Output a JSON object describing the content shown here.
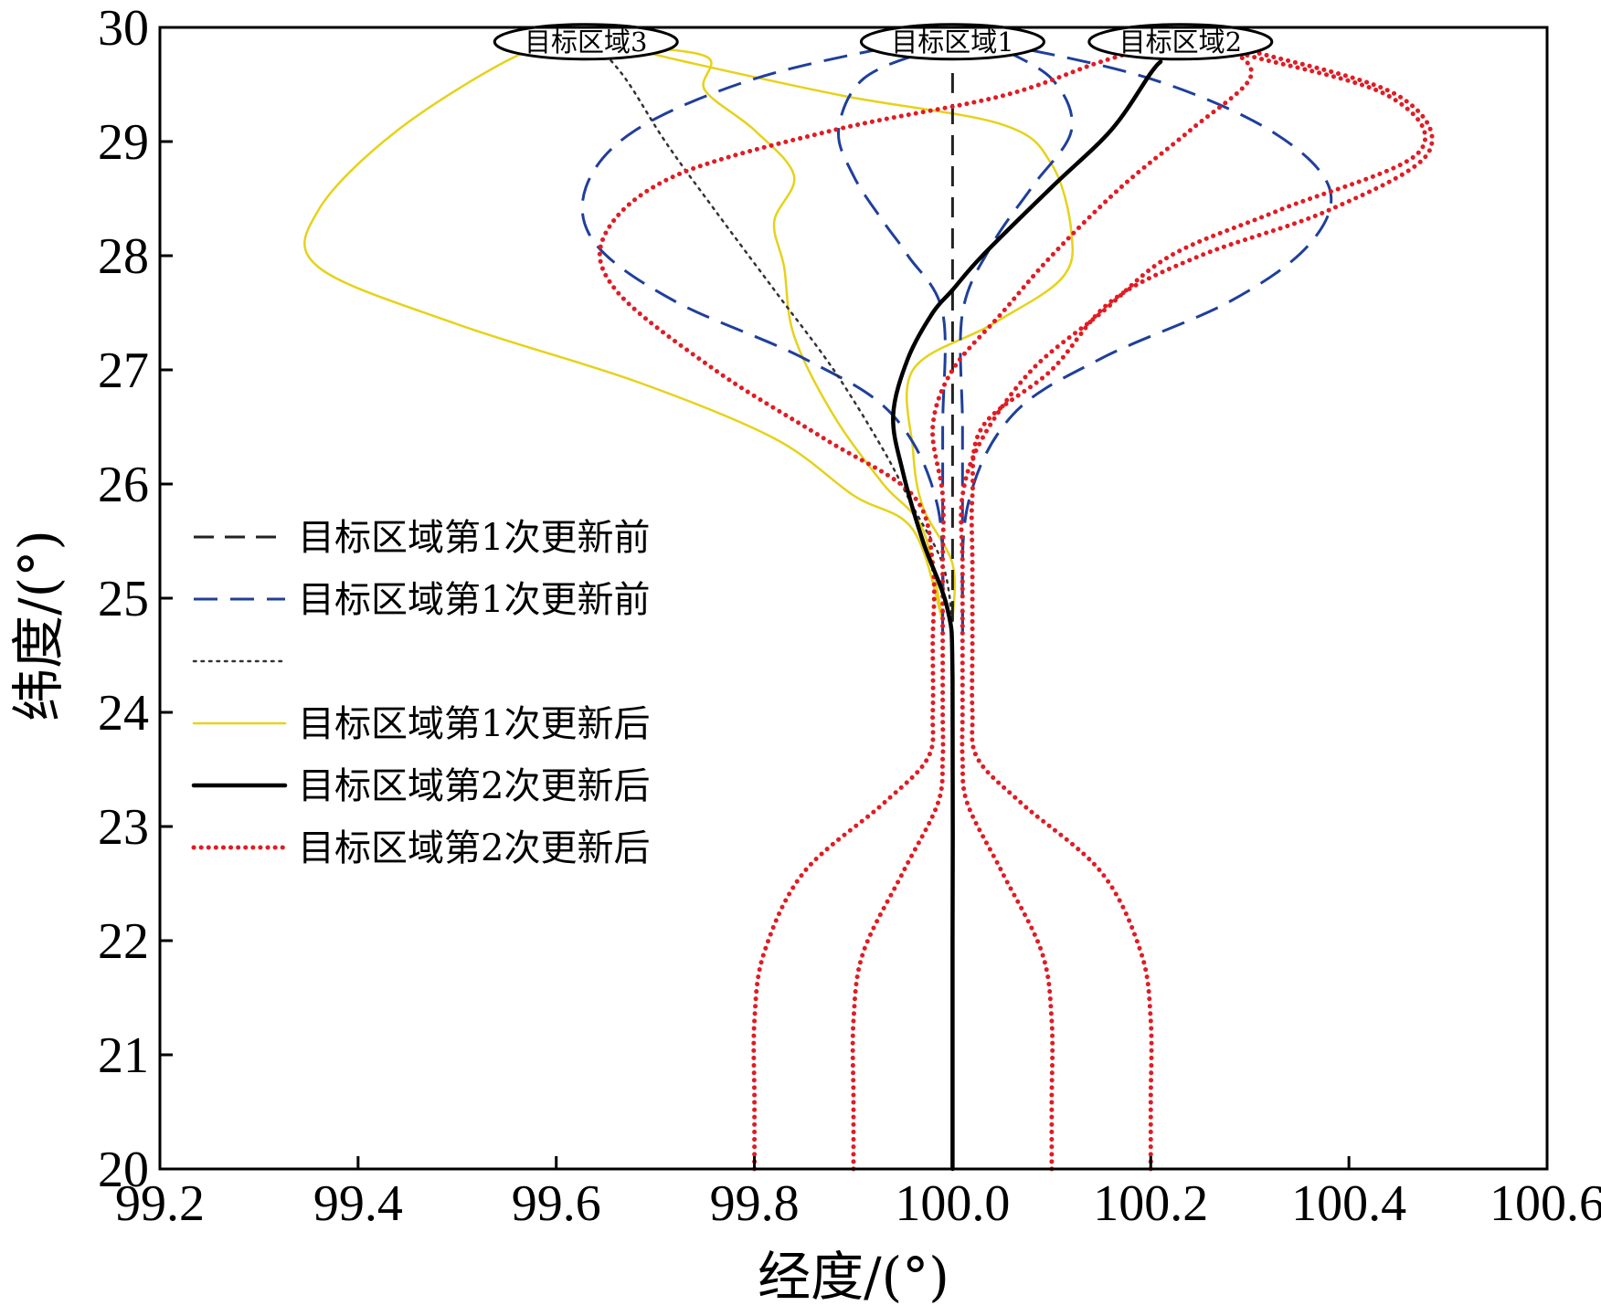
{
  "chart_data": {
    "type": "line",
    "xlabel": "经度/(°)",
    "ylabel": "纬度/(°)",
    "xlim": [
      99.2,
      100.6
    ],
    "ylim": [
      20,
      30
    ],
    "xticks": [
      "99.2",
      "99.4",
      "99.6",
      "99.8",
      "100.0",
      "100.2",
      "100.4",
      "100.6"
    ],
    "yticks": [
      "20",
      "21",
      "22",
      "23",
      "24",
      "25",
      "26",
      "27",
      "28",
      "29",
      "30"
    ],
    "grid": false,
    "legend_position": "left",
    "legend": [
      {
        "label": "目标区域第1次更新前",
        "color": "#222222",
        "style": "dash-long"
      },
      {
        "label": "目标区域第1次更新前",
        "color": "#1f3f9a",
        "style": "dash-long"
      },
      {
        "label": "",
        "color": "#333333",
        "style": "dot-fine"
      },
      {
        "label": "目标区域第1次更新后",
        "color": "#e6d21a",
        "style": "solid-thin"
      },
      {
        "label": "目标区域第2次更新后",
        "color": "#000000",
        "style": "solid-thick"
      },
      {
        "label": "目标区域第2次更新后",
        "color": "#e01c24",
        "style": "dot-red"
      }
    ],
    "target_regions": [
      {
        "label": "目标区域3",
        "x": 99.63,
        "y": 29.85
      },
      {
        "label": "目标区域1",
        "x": 100.0,
        "y": 29.85
      },
      {
        "label": "目标区域2",
        "x": 100.23,
        "y": 29.85
      }
    ],
    "series": [
      {
        "style": 0,
        "points": [
          [
            100.0,
            24.8
          ],
          [
            100.0,
            26
          ],
          [
            100.0,
            27
          ],
          [
            100.0,
            28
          ],
          [
            100.0,
            29
          ],
          [
            100.0,
            29.65
          ]
        ]
      },
      {
        "style": 1,
        "points": [
          [
            99.99,
            24.7
          ],
          [
            99.99,
            25.5
          ],
          [
            99.99,
            26.5
          ],
          [
            99.99,
            27.5
          ],
          [
            99.955,
            28
          ],
          [
            99.93,
            28.3
          ],
          [
            99.9,
            28.7
          ],
          [
            99.885,
            29.1
          ],
          [
            99.91,
            29.55
          ],
          [
            99.98,
            29.8
          ],
          [
            100.03,
            29.85
          ]
        ]
      },
      {
        "style": 1,
        "points": [
          [
            100.01,
            24.7
          ],
          [
            100.01,
            25.5
          ],
          [
            100.01,
            26.5
          ],
          [
            100.01,
            27.5
          ],
          [
            100.04,
            28.1
          ],
          [
            100.08,
            28.6
          ],
          [
            100.12,
            29.1
          ],
          [
            100.1,
            29.55
          ],
          [
            100.04,
            29.85
          ]
        ]
      },
      {
        "style": 1,
        "points": [
          [
            99.99,
            24.7
          ],
          [
            99.985,
            25.8
          ],
          [
            99.94,
            26.6
          ],
          [
            99.85,
            27.1
          ],
          [
            99.72,
            27.6
          ],
          [
            99.64,
            28.1
          ],
          [
            99.63,
            28.6
          ],
          [
            99.68,
            29.1
          ],
          [
            99.8,
            29.55
          ],
          [
            99.95,
            29.85
          ],
          [
            100.0,
            29.9
          ]
        ]
      },
      {
        "style": 1,
        "points": [
          [
            100.01,
            24.7
          ],
          [
            100.015,
            25.8
          ],
          [
            100.06,
            26.6
          ],
          [
            100.15,
            27.1
          ],
          [
            100.28,
            27.6
          ],
          [
            100.36,
            28.1
          ],
          [
            100.38,
            28.6
          ],
          [
            100.32,
            29.1
          ],
          [
            100.2,
            29.55
          ],
          [
            100.05,
            29.85
          ],
          [
            100.0,
            29.9
          ]
        ]
      },
      {
        "style": 2,
        "points": [
          [
            100.0,
            24.8
          ],
          [
            99.99,
            25.3
          ],
          [
            99.96,
            25.8
          ],
          [
            99.93,
            26.3
          ],
          [
            99.88,
            27.0
          ],
          [
            99.82,
            27.7
          ],
          [
            99.76,
            28.4
          ],
          [
            99.71,
            29.0
          ],
          [
            99.67,
            29.55
          ],
          [
            99.64,
            29.85
          ]
        ]
      },
      {
        "style": 3,
        "points": [
          [
            99.99,
            24.8
          ],
          [
            99.96,
            25.6
          ],
          [
            99.9,
            25.9
          ],
          [
            99.82,
            26.4
          ],
          [
            99.68,
            26.9
          ],
          [
            99.5,
            27.4
          ],
          [
            99.36,
            27.9
          ],
          [
            99.36,
            28.4
          ],
          [
            99.44,
            29.1
          ],
          [
            99.56,
            29.75
          ],
          [
            99.62,
            29.85
          ]
        ]
      },
      {
        "style": 3,
        "points": [
          [
            99.99,
            24.8
          ],
          [
            99.97,
            25.6
          ],
          [
            99.93,
            26.0
          ],
          [
            99.88,
            26.6
          ],
          [
            99.84,
            27.3
          ],
          [
            99.83,
            27.9
          ],
          [
            99.82,
            28.3
          ],
          [
            99.84,
            28.7
          ],
          [
            99.8,
            29.1
          ],
          [
            99.75,
            29.45
          ],
          [
            99.75,
            29.75
          ],
          [
            99.64,
            29.85
          ]
        ]
      },
      {
        "style": 3,
        "points": [
          [
            100.0,
            24.8
          ],
          [
            100.0,
            25.3
          ],
          [
            99.97,
            25.8
          ],
          [
            99.96,
            26.3
          ],
          [
            99.96,
            27.0
          ],
          [
            100.04,
            27.4
          ],
          [
            100.11,
            27.8
          ],
          [
            100.12,
            28.2
          ],
          [
            100.1,
            28.8
          ],
          [
            100.05,
            29.15
          ],
          [
            99.89,
            29.4
          ],
          [
            99.73,
            29.7
          ],
          [
            99.66,
            29.85
          ]
        ]
      },
      {
        "style": 4,
        "points": [
          [
            100.0,
            20.0
          ],
          [
            100.0,
            22
          ],
          [
            100.0,
            24.3
          ],
          [
            99.995,
            24.9
          ],
          [
            99.97,
            25.5
          ],
          [
            99.95,
            26.1
          ],
          [
            99.94,
            26.6
          ],
          [
            99.955,
            27.1
          ],
          [
            99.98,
            27.5
          ],
          [
            100.0,
            27.7
          ],
          [
            100.03,
            28.0
          ],
          [
            100.1,
            28.6
          ],
          [
            100.16,
            29.1
          ],
          [
            100.2,
            29.6
          ],
          [
            100.21,
            29.7
          ]
        ]
      },
      {
        "style": 5,
        "points": [
          [
            99.8,
            20.0
          ],
          [
            99.8,
            20.6
          ],
          [
            99.8,
            21.3
          ],
          [
            99.81,
            21.9
          ],
          [
            99.85,
            22.6
          ],
          [
            99.93,
            23.2
          ],
          [
            99.975,
            23.6
          ],
          [
            99.98,
            24.0
          ],
          [
            99.98,
            24.6
          ],
          [
            99.98,
            25.3
          ],
          [
            99.96,
            25.9
          ],
          [
            99.87,
            26.4
          ],
          [
            99.76,
            27.0
          ],
          [
            99.66,
            27.7
          ],
          [
            99.65,
            28.2
          ],
          [
            99.72,
            28.7
          ],
          [
            99.88,
            29.1
          ],
          [
            100.05,
            29.4
          ],
          [
            100.15,
            29.7
          ],
          [
            100.23,
            29.9
          ]
        ]
      },
      {
        "style": 5,
        "points": [
          [
            99.9,
            20.0
          ],
          [
            99.9,
            20.6
          ],
          [
            99.9,
            21.3
          ],
          [
            99.91,
            21.9
          ],
          [
            99.95,
            22.6
          ],
          [
            99.985,
            23.2
          ],
          [
            99.99,
            23.6
          ],
          [
            99.99,
            24.0
          ],
          [
            99.99,
            24.6
          ],
          [
            99.99,
            25.3
          ],
          [
            99.99,
            25.9
          ],
          [
            99.98,
            26.5
          ],
          [
            100.0,
            27.0
          ],
          [
            100.05,
            27.5
          ],
          [
            100.1,
            28.0
          ],
          [
            100.17,
            28.6
          ],
          [
            100.24,
            29.1
          ],
          [
            100.3,
            29.55
          ],
          [
            100.28,
            29.8
          ],
          [
            100.23,
            29.9
          ]
        ]
      },
      {
        "style": 5,
        "points": [
          [
            100.1,
            20.0
          ],
          [
            100.1,
            20.6
          ],
          [
            100.1,
            21.3
          ],
          [
            100.09,
            21.9
          ],
          [
            100.05,
            22.6
          ],
          [
            100.015,
            23.2
          ],
          [
            100.01,
            23.6
          ],
          [
            100.01,
            24.0
          ],
          [
            100.01,
            24.6
          ],
          [
            100.01,
            25.3
          ],
          [
            100.01,
            25.9
          ],
          [
            100.03,
            26.4
          ],
          [
            100.08,
            27.0
          ],
          [
            100.15,
            27.5
          ],
          [
            100.22,
            28.0
          ],
          [
            100.33,
            28.4
          ],
          [
            100.47,
            28.9
          ],
          [
            100.44,
            29.4
          ],
          [
            100.3,
            29.75
          ],
          [
            100.23,
            29.9
          ]
        ]
      },
      {
        "style": 5,
        "points": [
          [
            100.2,
            20.0
          ],
          [
            100.2,
            20.6
          ],
          [
            100.2,
            21.3
          ],
          [
            100.19,
            21.9
          ],
          [
            100.15,
            22.6
          ],
          [
            100.07,
            23.2
          ],
          [
            100.025,
            23.6
          ],
          [
            100.02,
            24.0
          ],
          [
            100.02,
            24.6
          ],
          [
            100.02,
            25.3
          ],
          [
            100.02,
            25.9
          ],
          [
            100.03,
            26.5
          ],
          [
            100.1,
            27.0
          ],
          [
            100.16,
            27.6
          ],
          [
            100.25,
            28.0
          ],
          [
            100.38,
            28.4
          ],
          [
            100.48,
            28.9
          ],
          [
            100.45,
            29.4
          ],
          [
            100.32,
            29.75
          ],
          [
            100.23,
            29.9
          ]
        ]
      }
    ]
  }
}
